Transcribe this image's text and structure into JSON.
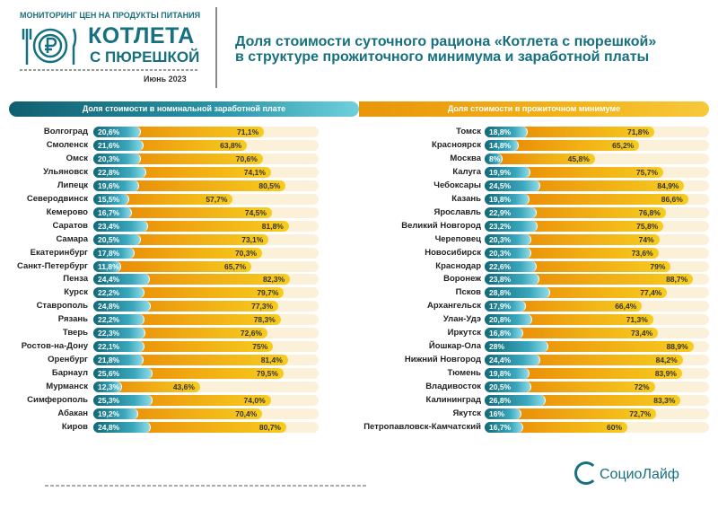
{
  "header": {
    "monitoring": "МОНИТОРИНГ ЦЕН НА ПРОДУКТЫ ПИТАНИЯ",
    "brand_line1": "КОТЛЕТА",
    "brand_line2": "С ПЮРЕШКОЙ",
    "date": "Июнь 2023",
    "title_line1": "Доля стоимости суточного рациона «Котлета с пюрешкой»",
    "title_line2": "в структуре прожиточного минимума и заработной платы",
    "logo": "СоциоЛайф"
  },
  "colors": {
    "teal": "#17707f",
    "orange": "#f0a812",
    "track": "#fbf1d8"
  },
  "chart_data": {
    "type": "bar",
    "xlim": [
      0,
      100
    ],
    "legend": {
      "wage": "Доля стоимости в номинальной заработной плате",
      "minimum": "Доля стоимости в прожиточном минимуме"
    },
    "panels": [
      {
        "categories": [
          "Волгоград",
          "Смоленск",
          "Омск",
          "Ульяновск",
          "Липецк",
          "Северодвинск",
          "Кемерово",
          "Саратов",
          "Самара",
          "Екатеринбург",
          "Санкт-Петербург",
          "Пенза",
          "Курск",
          "Ставрополь",
          "Рязань",
          "Тверь",
          "Ростов-на-Дону",
          "Оренбург",
          "Барнаул",
          "Мурманск",
          "Симферополь",
          "Абакан",
          "Киров"
        ],
        "wage": [
          20.6,
          21.6,
          20.3,
          22.8,
          19.6,
          15.5,
          16.7,
          23.4,
          20.5,
          17.8,
          11.8,
          24.4,
          22.2,
          24.8,
          22.2,
          22.3,
          22.1,
          21.8,
          25.6,
          12.3,
          25.3,
          19.2,
          24.8
        ],
        "wage_labels": [
          "20,6%",
          "21,6%",
          "20,3%",
          "22,8%",
          "19,6%",
          "15,5%",
          "16,7%",
          "23,4%",
          "20,5%",
          "17,8%",
          "11,8%",
          "24,4%",
          "22,2%",
          "24,8%",
          "22,2%",
          "22,3%",
          "22,1%",
          "21,8%",
          "25,6%",
          "12,3%",
          "25,3%",
          "19,2%",
          "24,8%"
        ],
        "minimum": [
          71.1,
          63.8,
          70.6,
          74.1,
          80.5,
          57.7,
          74.5,
          81.8,
          73.1,
          70.3,
          65.7,
          82.3,
          79.7,
          77.3,
          78.3,
          72.6,
          75,
          81.4,
          79.5,
          43.6,
          74.0,
          70.4,
          80.7
        ],
        "minimum_labels": [
          "71,1%",
          "63,8%",
          "70,6%",
          "74,1%",
          "80,5%",
          "57,7%",
          "74,5%",
          "81,8%",
          "73,1%",
          "70,3%",
          "65,7%",
          "82,3%",
          "79,7%",
          "77,3%",
          "78,3%",
          "72,6%",
          "75%",
          "81,4%",
          "79,5%",
          "43,6%",
          "74,0%",
          "70,4%",
          "80,7%"
        ]
      },
      {
        "categories": [
          "Томск",
          "Красноярск",
          "Москва",
          "Калуга",
          "Чебоксары",
          "Казань",
          "Ярославль",
          "Великий Новгород",
          "Череповец",
          "Новосибирск",
          "Краснодар",
          "Воронеж",
          "Псков",
          "Архангельск",
          "Улан-Удэ",
          "Иркутск",
          "Йошкар-Ола",
          "Нижний Новгород",
          "Тюмень",
          "Владивосток",
          "Калининград",
          "Якутск",
          "Петропавловск-Камчатский"
        ],
        "wage": [
          18.8,
          14.8,
          8,
          19.9,
          24.5,
          19.8,
          22.9,
          23.2,
          20.3,
          20.3,
          22.6,
          23.8,
          28.8,
          17.9,
          20.8,
          16.8,
          28,
          24.4,
          19.8,
          20.5,
          26.8,
          16,
          16.7
        ],
        "wage_labels": [
          "18,8%",
          "14,8%",
          "8%",
          "19,9%",
          "24,5%",
          "19,8%",
          "22,9%",
          "23,2%",
          "20,3%",
          "20,3%",
          "22,6%",
          "23,8%",
          "28,8%",
          "17,9%",
          "20,8%",
          "16,8%",
          "28%",
          "24,4%",
          "19,8%",
          "20,5%",
          "26,8%",
          "16%",
          "16,7%"
        ],
        "minimum": [
          71.8,
          65.2,
          45.8,
          75.7,
          84.9,
          86.6,
          76.8,
          75.8,
          74,
          73.6,
          79,
          88.7,
          77.4,
          66.4,
          71.3,
          73.4,
          88.9,
          84.2,
          83.9,
          72,
          83.3,
          72.7,
          60
        ],
        "minimum_labels": [
          "71,8%",
          "65,2%",
          "45,8%",
          "75,7%",
          "84,9%",
          "86,6%",
          "76,8%",
          "75,8%",
          "74%",
          "73,6%",
          "79%",
          "88,7%",
          "77,4%",
          "66,4%",
          "71,3%",
          "73,4%",
          "88,9%",
          "84,2%",
          "83,9%",
          "72%",
          "83,3%",
          "72,7%",
          "60%"
        ]
      }
    ]
  }
}
